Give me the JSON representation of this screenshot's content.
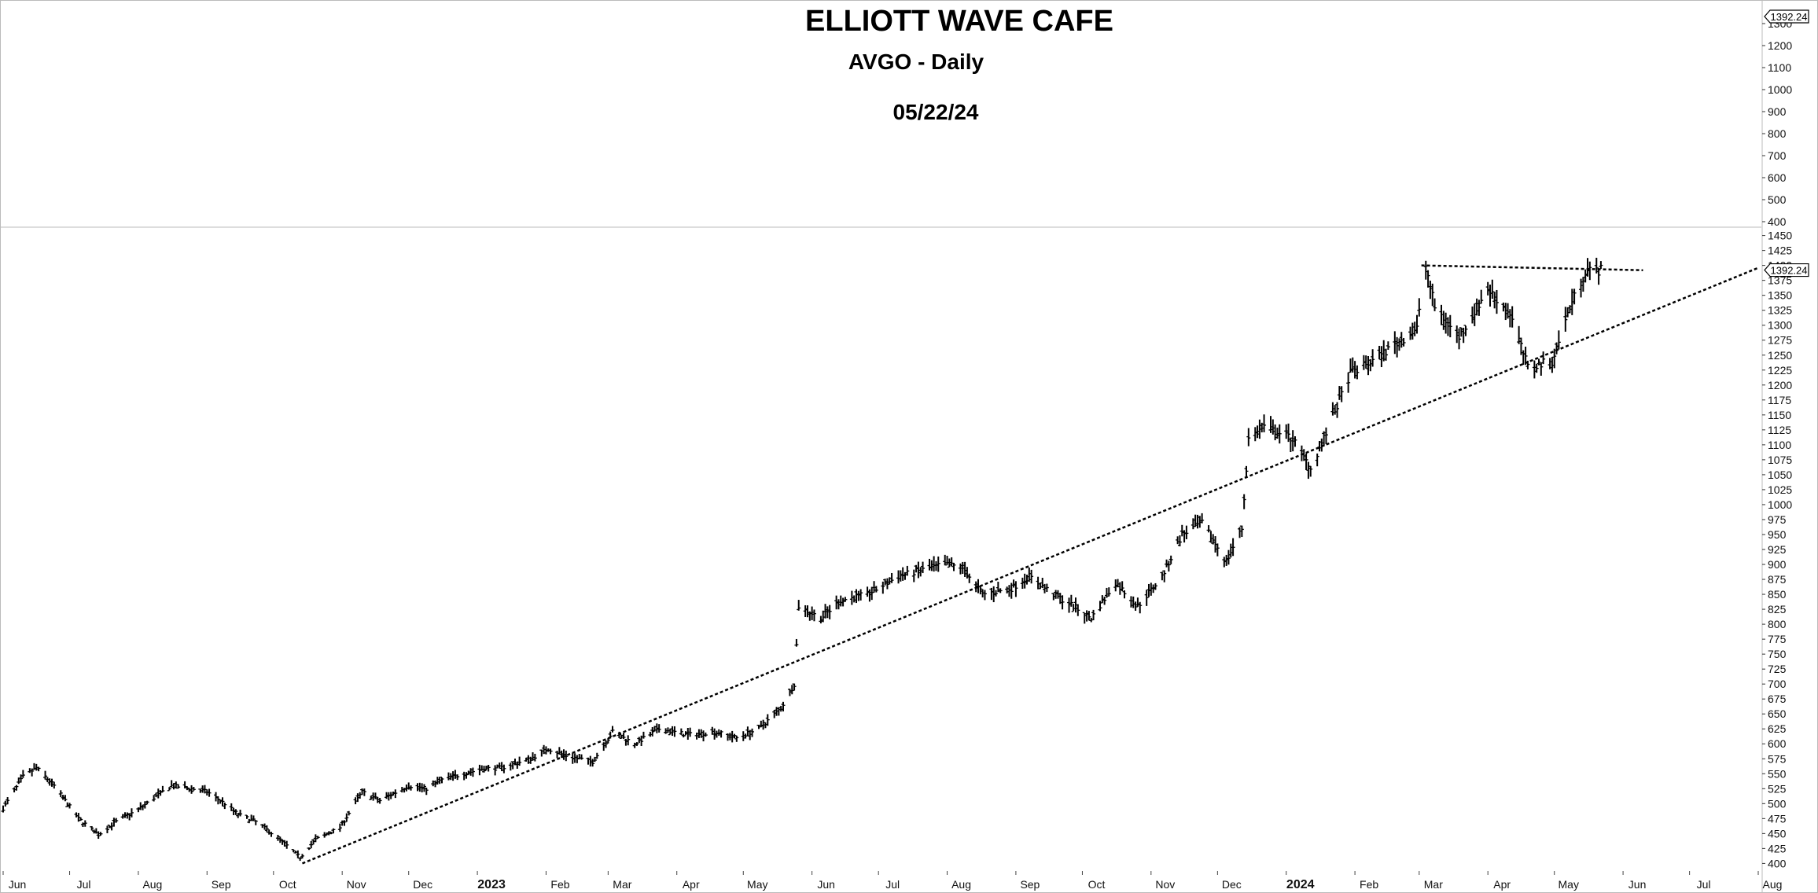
{
  "chart_data": {
    "type": "line",
    "title": "ELLIOTT WAVE CAFE",
    "subtitle": "AVGO - Daily",
    "date": "05/22/24",
    "last_price_label": "1392.24",
    "upper_axis_ticks": [
      400,
      500,
      600,
      700,
      800,
      900,
      1000,
      1100,
      1200,
      1300
    ],
    "lower_axis_ticks": [
      400,
      425,
      450,
      475,
      500,
      525,
      550,
      575,
      600,
      625,
      650,
      675,
      700,
      725,
      750,
      775,
      800,
      825,
      850,
      875,
      900,
      925,
      950,
      975,
      1000,
      1025,
      1050,
      1075,
      1100,
      1125,
      1150,
      1175,
      1200,
      1225,
      1250,
      1275,
      1300,
      1325,
      1350,
      1375,
      1400,
      1425,
      1450
    ],
    "lower_ylim": [
      390,
      1460
    ],
    "x_months": [
      "Jun",
      "Jul",
      "Aug",
      "Sep",
      "Oct",
      "Nov",
      "Dec",
      "2023",
      "Feb",
      "Mar",
      "Apr",
      "May",
      "Jun",
      "Jul",
      "Aug",
      "Sep",
      "Oct",
      "Nov",
      "Dec",
      "2024",
      "Feb",
      "Mar",
      "Apr",
      "May",
      "Jun",
      "Jul",
      "Aug"
    ],
    "x_start": "2022-06-01",
    "series": [
      {
        "x": [
          "2022-06-01",
          "2022-06-10",
          "2022-06-16",
          "2022-06-24",
          "2022-07-05",
          "2022-07-14",
          "2022-07-22",
          "2022-08-01",
          "2022-08-10",
          "2022-08-16",
          "2022-08-25",
          "2022-09-01",
          "2022-09-09",
          "2022-09-15",
          "2022-09-23",
          "2022-10-03",
          "2022-10-13",
          "2022-10-20",
          "2022-10-31",
          "2022-11-10",
          "2022-11-18",
          "2022-12-01",
          "2022-12-09",
          "2022-12-16",
          "2023-01-03",
          "2023-01-12",
          "2023-01-25",
          "2023-02-02",
          "2023-02-10",
          "2023-02-22",
          "2023-03-03",
          "2023-03-13",
          "2023-03-24",
          "2023-04-06",
          "2023-04-18",
          "2023-04-28",
          "2023-05-08",
          "2023-05-18",
          "2023-05-24",
          "2023-05-26",
          "2023-06-05",
          "2023-06-14",
          "2023-06-26",
          "2023-07-10",
          "2023-07-20",
          "2023-07-31",
          "2023-08-08",
          "2023-08-17",
          "2023-08-30",
          "2023-09-07",
          "2023-09-18",
          "2023-09-27",
          "2023-10-05",
          "2023-10-16",
          "2023-10-26",
          "2023-11-06",
          "2023-11-15",
          "2023-11-24",
          "2023-12-05",
          "2023-12-12",
          "2023-12-15",
          "2023-12-22",
          "2024-01-04",
          "2024-01-12",
          "2024-01-19",
          "2024-01-30",
          "2024-02-09",
          "2024-02-20",
          "2024-02-29",
          "2024-03-04",
          "2024-03-08",
          "2024-03-19",
          "2024-04-01",
          "2024-04-11",
          "2024-04-19",
          "2024-04-30",
          "2024-05-08",
          "2024-05-15",
          "2024-05-22"
        ],
        "y": [
          492,
          545,
          560,
          530,
          475,
          448,
          470,
          490,
          515,
          530,
          525,
          520,
          500,
          482,
          470,
          443,
          410,
          440,
          460,
          520,
          505,
          530,
          525,
          540,
          558,
          560,
          575,
          592,
          580,
          570,
          620,
          600,
          625,
          615,
          620,
          610,
          625,
          660,
          700,
          830,
          810,
          840,
          850,
          880,
          890,
          900,
          895,
          850,
          860,
          880,
          850,
          830,
          810,
          870,
          830,
          880,
          950,
          970,
          905,
          960,
          1110,
          1130,
          1110,
          1060,
          1120,
          1220,
          1240,
          1270,
          1295,
          1400,
          1330,
          1280,
          1360,
          1320,
          1230,
          1240,
          1330,
          1390,
          1392.24
        ]
      }
    ],
    "lines": [
      {
        "name": "support",
        "x": [
          "2022-10-14",
          "2024-08-01"
        ],
        "y": [
          400,
          1396
        ]
      },
      {
        "name": "resistance",
        "x": [
          "2024-03-02",
          "2024-06-10"
        ],
        "y": [
          1400,
          1392
        ]
      }
    ]
  }
}
